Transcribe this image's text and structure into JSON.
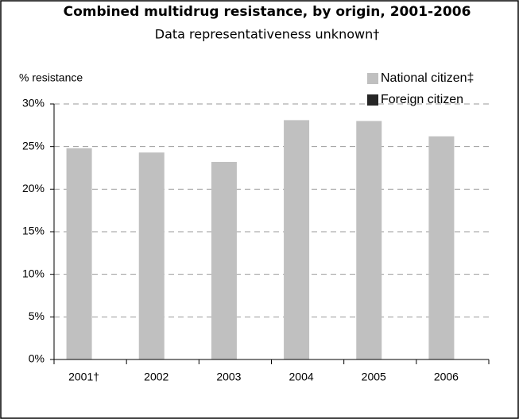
{
  "chart_data": {
    "type": "bar",
    "title": "Combined multidrug resistance, by origin, 2001-2006",
    "subtitle": "Data representativeness unknown†",
    "y_label": "% resistance",
    "categories": [
      "2001†",
      "2002",
      "2003",
      "2004",
      "2005",
      "2006"
    ],
    "series": [
      {
        "name": "National citizen‡",
        "color": "#c0c0c0",
        "values": [
          24.8,
          24.3,
          23.2,
          28.1,
          28.0,
          26.2
        ]
      },
      {
        "name": "Foreign citizen",
        "color": "#262626",
        "values": [
          null,
          null,
          null,
          null,
          null,
          null
        ]
      }
    ],
    "ylim": [
      0,
      30
    ],
    "yticks": [
      {
        "value": 0,
        "label": "0%"
      },
      {
        "value": 5,
        "label": "5%"
      },
      {
        "value": 10,
        "label": "10%"
      },
      {
        "value": 15,
        "label": "15%"
      },
      {
        "value": 20,
        "label": "20%"
      },
      {
        "value": 25,
        "label": "25%"
      },
      {
        "value": 30,
        "label": "30%"
      }
    ],
    "grid": true,
    "legend": "top-right"
  }
}
